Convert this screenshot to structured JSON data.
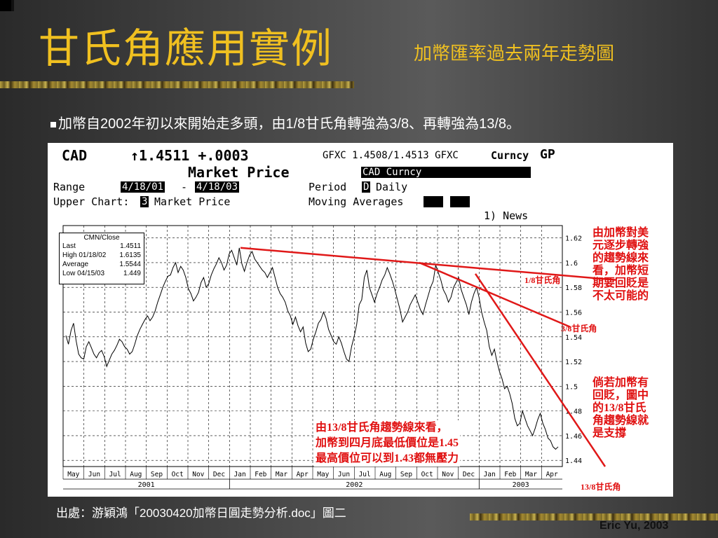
{
  "slide": {
    "title": "甘氏角應用實例",
    "subtitle": "加幣匯率過去兩年走勢圖",
    "bullet": "加幣自2002年初以來開始走多頭，由1/8甘氏角轉強為3/8、再轉強為13/8。",
    "source": "出處：游穎鴻「20030420加幣日圓走勢分析.doc」圖二",
    "author": "Eric Yu, 2003"
  },
  "terminal": {
    "ticker": "CAD",
    "last_line": "↑1.4511 +.0003",
    "quote": "GFXC 1.4508/1.4513 GFXC",
    "curncy": "Curncy",
    "gp": "GP",
    "market_price": "Market Price",
    "security": "CAD Curncy",
    "range_label": "Range",
    "range_from": "4/18/01",
    "range_dash": "-",
    "range_to": "4/18/03",
    "period_label": "Period",
    "period_code": "D",
    "period_value": "Daily",
    "upper_chart_label": "Upper Chart:",
    "upper_chart_code": "3",
    "upper_chart_value": "Market Price",
    "moving_avg_label": "Moving Averages",
    "news": "1) News"
  },
  "legend_box": {
    "title": "CMN/Close",
    "rows": [
      {
        "label": "Last",
        "value": "1.4511"
      },
      {
        "label": "High 01/18/02",
        "value": "1.6135"
      },
      {
        "label": "Average",
        "value": "1.5544"
      },
      {
        "label": "Low 04/15/03",
        "value": "1.449"
      }
    ]
  },
  "annotations": {
    "right_top": [
      "由加幣對美",
      "元逐步轉強",
      "的趨勢線來",
      "看，加幣短",
      "期要回貶是",
      "不太可能的"
    ],
    "right_bottom": [
      "倘若加幣有",
      "回貶，圖中",
      "的13/8甘氏",
      "角趨勢線就",
      "是支撐"
    ],
    "center": [
      "由13/8甘氏角趨勢線來看，",
      "加幣到四月底最低價位是1.45",
      "最高價位可以到1.43都無壓力"
    ],
    "gann_1_8": "1/8甘氏角",
    "gann_3_8": "3/8甘氏角",
    "gann_13_8": "13/8甘氏角"
  },
  "chart_data": {
    "type": "line",
    "series": [
      {
        "values": [
          1.541,
          1.534,
          1.545,
          1.551,
          1.537,
          1.526,
          1.523,
          1.522,
          1.532,
          1.536,
          1.531,
          1.526,
          1.523,
          1.527,
          1.529,
          1.524,
          1.516,
          1.521,
          1.526,
          1.529,
          1.533,
          1.538,
          1.536,
          1.532,
          1.53,
          1.526,
          1.528,
          1.534,
          1.541,
          1.546,
          1.55,
          1.554,
          1.557,
          1.553,
          1.556,
          1.561,
          1.568,
          1.574,
          1.58,
          1.585,
          1.589,
          1.59,
          1.596,
          1.6,
          1.592,
          1.597,
          1.594,
          1.588,
          1.579,
          1.575,
          1.569,
          1.572,
          1.576,
          1.584,
          1.588,
          1.58,
          1.583,
          1.59,
          1.595,
          1.599,
          1.604,
          1.6,
          1.594,
          1.598,
          1.607,
          1.61,
          1.604,
          1.598,
          1.612,
          1.599,
          1.593,
          1.6,
          1.606,
          1.609,
          1.603,
          1.6,
          1.597,
          1.594,
          1.592,
          1.588,
          1.592,
          1.596,
          1.588,
          1.58,
          1.575,
          1.572,
          1.568,
          1.561,
          1.557,
          1.55,
          1.556,
          1.549,
          1.544,
          1.548,
          1.535,
          1.528,
          1.53,
          1.538,
          1.544,
          1.551,
          1.554,
          1.56,
          1.555,
          1.546,
          1.541,
          1.536,
          1.534,
          1.54,
          1.535,
          1.528,
          1.522,
          1.52,
          1.532,
          1.54,
          1.55,
          1.566,
          1.57,
          1.588,
          1.594,
          1.58,
          1.574,
          1.568,
          1.575,
          1.58,
          1.586,
          1.59,
          1.596,
          1.591,
          1.585,
          1.578,
          1.57,
          1.562,
          1.552,
          1.556,
          1.56,
          1.566,
          1.57,
          1.574,
          1.568,
          1.562,
          1.558,
          1.566,
          1.573,
          1.58,
          1.585,
          1.598,
          1.592,
          1.586,
          1.578,
          1.574,
          1.568,
          1.572,
          1.58,
          1.584,
          1.588,
          1.578,
          1.572,
          1.566,
          1.558,
          1.568,
          1.575,
          1.58,
          1.572,
          1.56,
          1.552,
          1.545,
          1.532,
          1.525,
          1.53,
          1.52,
          1.512,
          1.506,
          1.498,
          1.5,
          1.494,
          1.486,
          1.474,
          1.468,
          1.47,
          1.48,
          1.474,
          1.468,
          1.464,
          1.46,
          1.466,
          1.473,
          1.478,
          1.47,
          1.465,
          1.458,
          1.456,
          1.451,
          1.449,
          1.451
        ]
      }
    ],
    "x_labels": [
      "May",
      "Jun",
      "Jul",
      "Aug",
      "Sep",
      "Oct",
      "Nov",
      "Dec",
      "Jan",
      "Feb",
      "Mar",
      "Apr",
      "May",
      "Jun",
      "Jul",
      "Aug",
      "Sep",
      "Oct",
      "Nov",
      "Dec",
      "Jan",
      "Feb",
      "Mar",
      "Apr"
    ],
    "year_labels": [
      "2001",
      "2002",
      "2003"
    ],
    "y_ticks": [
      1.62,
      1.6,
      1.58,
      1.56,
      1.54,
      1.52,
      1.5,
      1.48,
      1.46,
      1.44
    ],
    "ylim": [
      1.435,
      1.63
    ],
    "grid": true,
    "trendlines": [
      {
        "label": "1/8甘氏角",
        "from": [
          1.612
        ],
        "to": [
          1.586
        ]
      },
      {
        "label": "3/8甘氏角",
        "from": [
          1.6
        ],
        "to": [
          1.548
        ]
      },
      {
        "label": "13/8甘氏角",
        "from": [
          1.591
        ],
        "to": [
          1.435
        ]
      }
    ]
  },
  "colors": {
    "accent": "#f0c020",
    "trendline": "#e01818",
    "annotation": "#e01010"
  }
}
